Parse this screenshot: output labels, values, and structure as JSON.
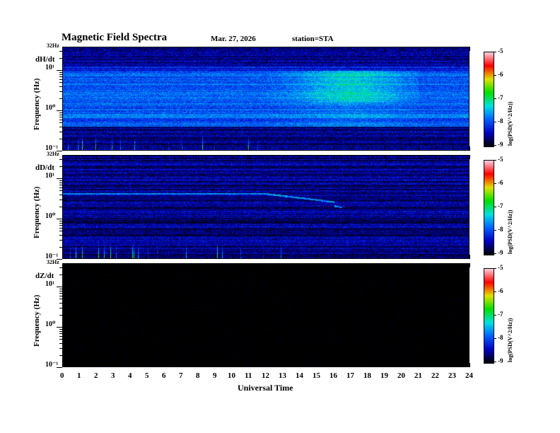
{
  "header": {
    "title": "Magnetic  Field  Spectra",
    "date": "Mar. 27, 2026",
    "station": "station=STA"
  },
  "chart_data": {
    "type": "heatmap",
    "xlabel": "Universal Time",
    "xlim": [
      0,
      24
    ],
    "x_ticks": [
      "0",
      "1",
      "2",
      "3",
      "4",
      "5",
      "6",
      "7",
      "8",
      "9",
      "10",
      "11",
      "12",
      "13",
      "14",
      "15",
      "16",
      "17",
      "18",
      "19",
      "20",
      "21",
      "22",
      "23",
      "24"
    ],
    "ylabel": "Frequency  (Hz)",
    "yscale": "log",
    "ylim_hz": [
      0.1,
      32
    ],
    "y_top_label": "32Hz",
    "y_ticks": [
      "10¹",
      "10⁰",
      "10⁻¹"
    ],
    "colorbar": {
      "label": "log(PSD(V^2/Hz))",
      "range": [
        -9,
        -5
      ],
      "ticks": [
        "-5",
        "-6",
        "-7",
        "-8",
        "-9"
      ],
      "colormap": [
        "#000000",
        "#0000c0",
        "#0060ff",
        "#00e0e0",
        "#00e000",
        "#e0e000",
        "#ff0000",
        "#ffd0e0"
      ]
    },
    "panels": [
      {
        "name": "dH/dt",
        "description_level": "active"
      },
      {
        "name": "dD/dt",
        "description_level": "active"
      },
      {
        "name": "dZ/dt",
        "description_level": "empty"
      }
    ]
  }
}
